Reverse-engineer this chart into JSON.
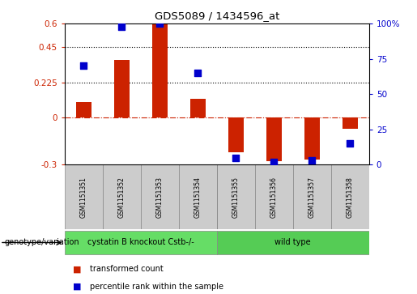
{
  "title": "GDS5089 / 1434596_at",
  "samples": [
    "GSM1151351",
    "GSM1151352",
    "GSM1151353",
    "GSM1151354",
    "GSM1151355",
    "GSM1151356",
    "GSM1151357",
    "GSM1151358"
  ],
  "transformed_count": [
    0.1,
    0.37,
    0.6,
    0.12,
    -0.22,
    -0.28,
    -0.27,
    -0.07
  ],
  "percentile_rank": [
    70,
    98,
    100,
    65,
    5,
    2,
    3,
    15
  ],
  "bar_color": "#cc2200",
  "dot_color": "#0000cc",
  "ylim_left": [
    -0.3,
    0.6
  ],
  "ylim_right": [
    0,
    100
  ],
  "yticks_left": [
    -0.3,
    0,
    0.225,
    0.45,
    0.6
  ],
  "yticks_right": [
    0,
    25,
    50,
    75,
    100
  ],
  "ytick_labels_left": [
    "-0.3",
    "0",
    "0.225",
    "0.45",
    "0.6"
  ],
  "ytick_labels_right": [
    "0",
    "25",
    "50",
    "75",
    "100%"
  ],
  "hline_y": 0,
  "dotted_lines": [
    0.225,
    0.45
  ],
  "genotype_groups": [
    {
      "label": "cystatin B knockout Cstb-/-",
      "start": 0,
      "end": 4,
      "color": "#66dd66"
    },
    {
      "label": "wild type",
      "start": 4,
      "end": 8,
      "color": "#55cc55"
    }
  ],
  "genotype_label": "genotype/variation",
  "legend_red_label": "transformed count",
  "legend_blue_label": "percentile rank within the sample",
  "bar_width": 0.4,
  "dot_size": 30,
  "background_color": "#ffffff",
  "plot_bg_color": "#ffffff",
  "tick_color_left": "#cc2200",
  "tick_color_right": "#0000cc",
  "sample_box_color": "#cccccc",
  "figsize": [
    5.15,
    3.63
  ]
}
